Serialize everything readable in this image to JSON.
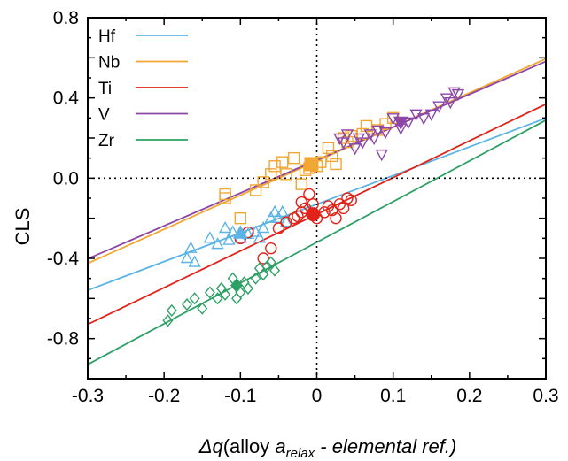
{
  "chart_data": {
    "type": "scatter",
    "title": "",
    "xlabel": {
      "prefix": "Δq",
      "text": "(alloy ",
      "a": "a",
      "sub": "relax",
      "rest": " - elemental ref.)"
    },
    "ylabel": "CLS",
    "xlim": [
      -0.3,
      0.3
    ],
    "ylim": [
      -1.0,
      0.8
    ],
    "x_ticks": [
      "-0.3",
      "-0.2",
      "-0.1",
      "0",
      "0.1",
      "0.2",
      "0.3"
    ],
    "x_tick_values": [
      -0.3,
      -0.2,
      -0.1,
      0,
      0.1,
      0.2,
      0.3
    ],
    "y_ticks": [
      "0.8",
      "0.4",
      "0.0",
      "-0.4",
      "-0.8"
    ],
    "y_tick_values": [
      0.8,
      0.4,
      0.0,
      -0.4,
      -0.8
    ],
    "grid": false,
    "reference_lines": {
      "x": 0,
      "y": 0,
      "style": "dotted"
    },
    "legend_position": "top-left",
    "series": [
      {
        "name": "Hf",
        "color": "#5BB4E5",
        "marker": "triangle-up",
        "fit": {
          "slope": 1.43,
          "intercept": -0.13
        },
        "mean": {
          "x": -0.1,
          "y": -0.275
        },
        "points": [
          [
            -0.17,
            -0.4
          ],
          [
            -0.165,
            -0.35
          ],
          [
            -0.16,
            -0.42
          ],
          [
            -0.14,
            -0.3
          ],
          [
            -0.13,
            -0.33
          ],
          [
            -0.12,
            -0.25
          ],
          [
            -0.115,
            -0.31
          ],
          [
            -0.11,
            -0.27
          ],
          [
            -0.1,
            -0.3
          ],
          [
            -0.09,
            -0.28
          ],
          [
            -0.08,
            -0.27
          ],
          [
            -0.075,
            -0.3
          ],
          [
            -0.07,
            -0.25
          ],
          [
            -0.06,
            -0.2
          ],
          [
            -0.055,
            -0.17
          ],
          [
            -0.05,
            -0.2
          ],
          [
            -0.045,
            -0.17
          ],
          [
            -0.04,
            -0.22
          ]
        ]
      },
      {
        "name": "Nb",
        "color": "#F2A633",
        "marker": "square",
        "fit": {
          "slope": 1.7,
          "intercept": 0.085
        },
        "mean": {
          "x": -0.007,
          "y": 0.07
        },
        "points": [
          [
            -0.12,
            -0.1
          ],
          [
            -0.12,
            -0.08
          ],
          [
            -0.1,
            -0.2
          ],
          [
            -0.08,
            -0.06
          ],
          [
            -0.07,
            -0.02
          ],
          [
            -0.06,
            0.02
          ],
          [
            -0.055,
            0.06
          ],
          [
            -0.045,
            0.08
          ],
          [
            -0.04,
            0.02
          ],
          [
            -0.03,
            0.1
          ],
          [
            -0.02,
            -0.03
          ],
          [
            -0.015,
            0.04
          ],
          [
            -0.01,
            0.05
          ],
          [
            0.0,
            0.06
          ],
          [
            0.005,
            0.08
          ],
          [
            0.015,
            0.15
          ],
          [
            0.02,
            0.11
          ],
          [
            0.025,
            0.07
          ],
          [
            0.035,
            0.2
          ],
          [
            0.04,
            0.18
          ],
          [
            0.045,
            0.21
          ],
          [
            0.06,
            0.22
          ],
          [
            0.065,
            0.26
          ],
          [
            0.08,
            0.24
          ],
          [
            0.09,
            0.27
          ],
          [
            0.1,
            0.3
          ]
        ]
      },
      {
        "name": "Ti",
        "color": "#E2231A",
        "marker": "circle",
        "fit": {
          "slope": 1.83,
          "intercept": -0.18
        },
        "mean": {
          "x": -0.005,
          "y": -0.18
        },
        "points": [
          [
            -0.1,
            -0.3
          ],
          [
            -0.09,
            -0.27
          ],
          [
            -0.07,
            -0.4
          ],
          [
            -0.06,
            -0.35
          ],
          [
            -0.05,
            -0.25
          ],
          [
            -0.04,
            -0.22
          ],
          [
            -0.03,
            -0.2
          ],
          [
            -0.025,
            -0.19
          ],
          [
            -0.02,
            -0.17
          ],
          [
            -0.02,
            -0.12
          ],
          [
            -0.015,
            -0.15
          ],
          [
            -0.01,
            -0.08
          ],
          [
            -0.005,
            -0.13
          ],
          [
            0.0,
            -0.2
          ],
          [
            0.01,
            -0.17
          ],
          [
            0.015,
            -0.14
          ],
          [
            0.02,
            -0.16
          ],
          [
            0.025,
            -0.2
          ],
          [
            0.03,
            -0.13
          ],
          [
            0.035,
            -0.15
          ],
          [
            0.04,
            -0.1
          ],
          [
            0.045,
            -0.11
          ]
        ]
      },
      {
        "name": "V",
        "color": "#8B46A7",
        "marker": "triangle-down",
        "fit": {
          "slope": 1.64,
          "intercept": 0.09
        },
        "mean": {
          "x": 0.11,
          "y": 0.28
        },
        "points": [
          [
            0.03,
            0.2
          ],
          [
            0.035,
            0.18
          ],
          [
            0.04,
            0.22
          ],
          [
            0.05,
            0.15
          ],
          [
            0.055,
            0.2
          ],
          [
            0.06,
            0.18
          ],
          [
            0.07,
            0.22
          ],
          [
            0.075,
            0.2
          ],
          [
            0.08,
            0.24
          ],
          [
            0.085,
            0.12
          ],
          [
            0.09,
            0.23
          ],
          [
            0.1,
            0.3
          ],
          [
            0.11,
            0.25
          ],
          [
            0.12,
            0.28
          ],
          [
            0.13,
            0.32
          ],
          [
            0.14,
            0.3
          ],
          [
            0.15,
            0.32
          ],
          [
            0.16,
            0.36
          ],
          [
            0.17,
            0.4
          ],
          [
            0.175,
            0.38
          ],
          [
            0.18,
            0.43
          ],
          [
            0.185,
            0.42
          ]
        ]
      },
      {
        "name": "Zr",
        "color": "#2EA066",
        "marker": "diamond",
        "fit": {
          "slope": 2.03,
          "intercept": -0.32
        },
        "mean": {
          "x": -0.105,
          "y": -0.535
        },
        "points": [
          [
            -0.195,
            -0.71
          ],
          [
            -0.19,
            -0.66
          ],
          [
            -0.17,
            -0.63
          ],
          [
            -0.16,
            -0.6
          ],
          [
            -0.15,
            -0.65
          ],
          [
            -0.14,
            -0.57
          ],
          [
            -0.13,
            -0.6
          ],
          [
            -0.125,
            -0.55
          ],
          [
            -0.12,
            -0.58
          ],
          [
            -0.11,
            -0.5
          ],
          [
            -0.105,
            -0.6
          ],
          [
            -0.1,
            -0.57
          ],
          [
            -0.095,
            -0.52
          ],
          [
            -0.09,
            -0.55
          ],
          [
            -0.08,
            -0.5
          ],
          [
            -0.075,
            -0.45
          ],
          [
            -0.07,
            -0.48
          ],
          [
            -0.065,
            -0.44
          ],
          [
            -0.06,
            -0.42
          ],
          [
            -0.055,
            -0.46
          ]
        ]
      }
    ]
  }
}
